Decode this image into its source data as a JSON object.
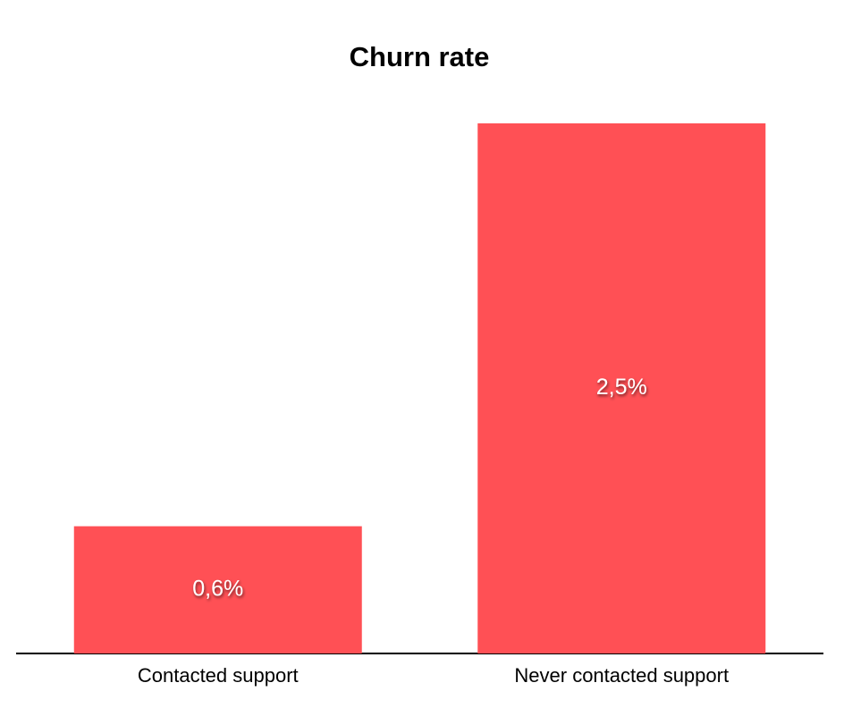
{
  "chart_data": {
    "type": "bar",
    "title": "Churn rate",
    "categories": [
      "Contacted support",
      "Never contacted support"
    ],
    "values": [
      0.6,
      2.5
    ],
    "value_labels": [
      "0,6%",
      "2,5%"
    ],
    "color": "#ff5055"
  }
}
